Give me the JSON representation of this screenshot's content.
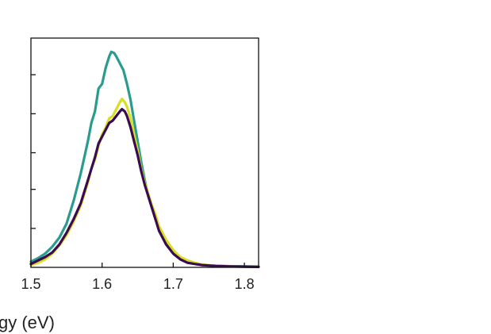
{
  "chart_data": {
    "type": "line",
    "title": "",
    "xlabel": "gy (eV)",
    "ylabel": "",
    "xlim": [
      1.5,
      1.82
    ],
    "ylim": [
      0,
      1.0
    ],
    "xticks": [
      1.5,
      1.6,
      1.7,
      1.8
    ],
    "xtick_labels": [
      "1.5",
      "1.6",
      "1.7",
      "1.8"
    ],
    "yticks": [
      0.17,
      0.34,
      0.5,
      0.67,
      0.84
    ],
    "grid": false,
    "legend": "none",
    "series": [
      {
        "color": "#2a9b8f",
        "x": [
          1.5,
          1.51,
          1.52,
          1.53,
          1.54,
          1.55,
          1.56,
          1.57,
          1.575,
          1.58,
          1.585,
          1.59,
          1.595,
          1.6,
          1.605,
          1.61,
          1.613,
          1.617,
          1.62,
          1.625,
          1.63,
          1.635,
          1.64,
          1.645,
          1.65,
          1.655,
          1.66,
          1.665,
          1.67,
          1.675,
          1.68,
          1.69,
          1.7,
          1.71,
          1.72,
          1.73,
          1.74,
          1.75,
          1.76,
          1.78,
          1.8,
          1.82
        ],
        "y": [
          0.025,
          0.04,
          0.06,
          0.09,
          0.13,
          0.19,
          0.29,
          0.41,
          0.48,
          0.55,
          0.63,
          0.68,
          0.78,
          0.8,
          0.87,
          0.92,
          0.94,
          0.935,
          0.92,
          0.89,
          0.86,
          0.8,
          0.73,
          0.64,
          0.55,
          0.46,
          0.38,
          0.31,
          0.26,
          0.21,
          0.17,
          0.11,
          0.065,
          0.04,
          0.025,
          0.017,
          0.012,
          0.009,
          0.007,
          0.005,
          0.004,
          0.003
        ]
      },
      {
        "color": "#d4e021",
        "x": [
          1.5,
          1.51,
          1.52,
          1.53,
          1.54,
          1.55,
          1.56,
          1.57,
          1.575,
          1.58,
          1.585,
          1.59,
          1.595,
          1.6,
          1.605,
          1.61,
          1.615,
          1.62,
          1.625,
          1.628,
          1.632,
          1.635,
          1.64,
          1.645,
          1.65,
          1.655,
          1.66,
          1.665,
          1.67,
          1.675,
          1.68,
          1.69,
          1.7,
          1.71,
          1.72,
          1.73,
          1.74,
          1.75,
          1.76,
          1.78,
          1.8,
          1.82
        ],
        "y": [
          0.01,
          0.02,
          0.035,
          0.06,
          0.095,
          0.14,
          0.2,
          0.27,
          0.32,
          0.37,
          0.43,
          0.47,
          0.53,
          0.58,
          0.61,
          0.65,
          0.66,
          0.69,
          0.72,
          0.735,
          0.72,
          0.7,
          0.65,
          0.58,
          0.51,
          0.43,
          0.37,
          0.32,
          0.27,
          0.23,
          0.18,
          0.12,
          0.075,
          0.045,
          0.03,
          0.02,
          0.013,
          0.009,
          0.006,
          0.004,
          0.003,
          0.002
        ]
      },
      {
        "color": "#3b0a4f",
        "x": [
          1.5,
          1.51,
          1.52,
          1.53,
          1.54,
          1.55,
          1.56,
          1.57,
          1.575,
          1.58,
          1.585,
          1.59,
          1.595,
          1.6,
          1.605,
          1.61,
          1.615,
          1.62,
          1.625,
          1.628,
          1.632,
          1.635,
          1.64,
          1.645,
          1.65,
          1.655,
          1.66,
          1.665,
          1.67,
          1.675,
          1.68,
          1.69,
          1.7,
          1.71,
          1.72,
          1.73,
          1.74,
          1.75,
          1.76,
          1.78,
          1.8,
          1.82
        ],
        "y": [
          0.015,
          0.03,
          0.045,
          0.065,
          0.1,
          0.15,
          0.21,
          0.28,
          0.33,
          0.38,
          0.43,
          0.48,
          0.54,
          0.57,
          0.6,
          0.63,
          0.64,
          0.66,
          0.68,
          0.69,
          0.68,
          0.66,
          0.61,
          0.55,
          0.49,
          0.42,
          0.36,
          0.31,
          0.26,
          0.21,
          0.16,
          0.1,
          0.06,
          0.035,
          0.02,
          0.015,
          0.01,
          0.008,
          0.006,
          0.004,
          0.003,
          0.002
        ]
      }
    ]
  }
}
